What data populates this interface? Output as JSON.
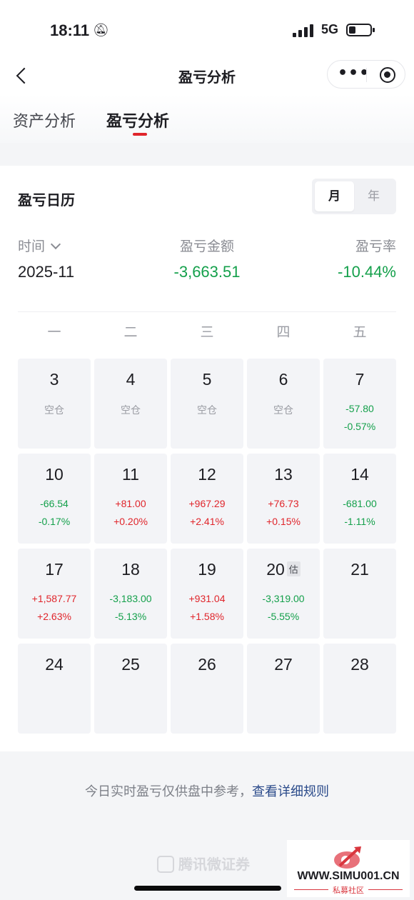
{
  "status_bar": {
    "time": "18:11",
    "network": "5G"
  },
  "nav": {
    "title": "盈亏分析"
  },
  "tabs": [
    {
      "label": "资产分析",
      "active": false
    },
    {
      "label": "盈亏分析",
      "active": true
    }
  ],
  "calendar": {
    "title": "盈亏日历",
    "toggle": {
      "month": "月",
      "year": "年",
      "selected": "月"
    },
    "summary": {
      "time_label": "时间",
      "time_value": "2025-11",
      "amount_label": "盈亏金额",
      "amount_value": "-3,663.51",
      "rate_label": "盈亏率",
      "rate_value": "-10.44%"
    },
    "weekdays": [
      "一",
      "二",
      "三",
      "四",
      "五"
    ],
    "estimate_badge": "估",
    "days": [
      {
        "day": "3",
        "line1": "空仓",
        "line2": "",
        "tone": "gray"
      },
      {
        "day": "4",
        "line1": "空仓",
        "line2": "",
        "tone": "gray"
      },
      {
        "day": "5",
        "line1": "空仓",
        "line2": "",
        "tone": "gray"
      },
      {
        "day": "6",
        "line1": "空仓",
        "line2": "",
        "tone": "gray"
      },
      {
        "day": "7",
        "line1": "-57.80",
        "line2": "-0.57%",
        "tone": "green"
      },
      {
        "day": "10",
        "line1": "-66.54",
        "line2": "-0.17%",
        "tone": "green"
      },
      {
        "day": "11",
        "line1": "+81.00",
        "line2": "+0.20%",
        "tone": "red"
      },
      {
        "day": "12",
        "line1": "+967.29",
        "line2": "+2.41%",
        "tone": "red"
      },
      {
        "day": "13",
        "line1": "+76.73",
        "line2": "+0.15%",
        "tone": "red"
      },
      {
        "day": "14",
        "line1": "-681.00",
        "line2": "-1.11%",
        "tone": "green"
      },
      {
        "day": "17",
        "line1": "+1,587.77",
        "line2": "+2.63%",
        "tone": "red"
      },
      {
        "day": "18",
        "line1": "-3,183.00",
        "line2": "-5.13%",
        "tone": "green"
      },
      {
        "day": "19",
        "line1": "+931.04",
        "line2": "+1.58%",
        "tone": "red"
      },
      {
        "day": "20",
        "line1": "-3,319.00",
        "line2": "-5.55%",
        "tone": "green",
        "estimate": true
      },
      {
        "day": "21",
        "line1": "",
        "line2": "",
        "tone": "gray"
      },
      {
        "day": "24",
        "line1": "",
        "line2": "",
        "tone": "gray"
      },
      {
        "day": "25",
        "line1": "",
        "line2": "",
        "tone": "gray"
      },
      {
        "day": "26",
        "line1": "",
        "line2": "",
        "tone": "gray"
      },
      {
        "day": "27",
        "line1": "",
        "line2": "",
        "tone": "gray"
      },
      {
        "day": "28",
        "line1": "",
        "line2": "",
        "tone": "gray"
      }
    ]
  },
  "note": {
    "text": "今日实时盈亏仅供盘中参考，",
    "link": "查看详细规则"
  },
  "footer": {
    "brand": "腾讯微证券"
  },
  "watermark": {
    "text": "WWW.SIMU001.CN",
    "sub": "私募社区"
  },
  "colors": {
    "loss_green": "#14a04b",
    "gain_red": "#e0252b",
    "accent_red": "#e0252b"
  }
}
